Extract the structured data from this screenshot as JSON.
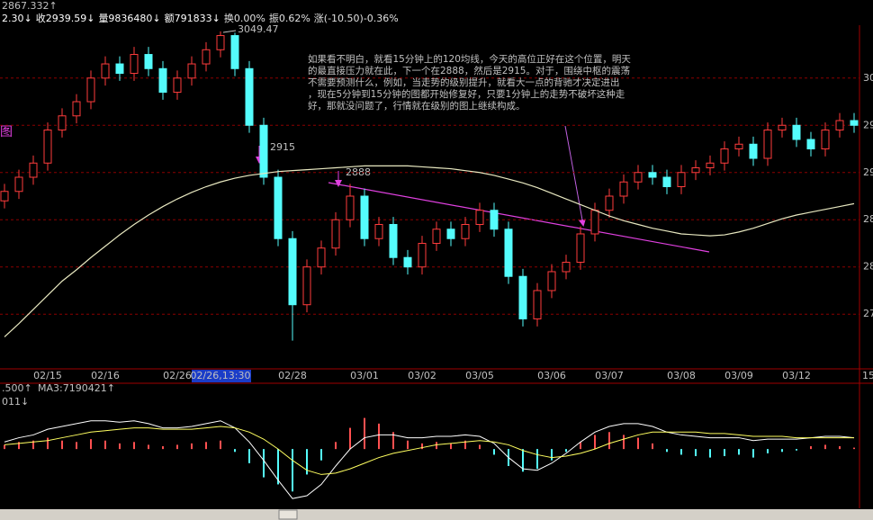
{
  "chart_data": [
    {
      "type": "candlestick",
      "header": {
        "last": "2867.332↑",
        "items": [
          "2.30↓",
          "收2939.59↓",
          "量9836480↓",
          "额791833↓",
          "换0.00%",
          "振0.62%",
          "涨(-10.50)-0.36%"
        ]
      },
      "side_label": "图",
      "corner_label": "15",
      "annotations": {
        "high_label": "3049.47",
        "mark1": "2915",
        "mark2": "2888",
        "note": [
          "如果看不明白，就看15分钟上的120均线，今天的高位正好在这个位置，明天",
          "的最直接压力就在此，下一个在2888，然后是2915。对于，围绕中枢的震荡",
          "不需要预测什么，例如，当走势的级别提升，就看大一点的背驰才决定进出",
          "，现在5分钟到15分钟的图都开始修复好，只要1分钟上的走势不破坏这种走",
          "好，那就没问题了，行情就在级别的图上继续构成。"
        ]
      },
      "categories": [
        null,
        null,
        null,
        "02/15",
        null,
        null,
        null,
        "02/16",
        null,
        null,
        null,
        null,
        "02/26",
        null,
        null,
        "02/26,13:30",
        null,
        null,
        null,
        null,
        "02/28",
        null,
        null,
        null,
        null,
        "03/01",
        null,
        null,
        null,
        "03/02",
        null,
        null,
        null,
        "03/05",
        null,
        null,
        null,
        null,
        "03/06",
        null,
        null,
        null,
        "03/07",
        null,
        null,
        null,
        null,
        "03/08",
        null,
        null,
        null,
        "03/09",
        null,
        null,
        null,
        "03/12",
        null,
        null,
        null,
        null
      ],
      "open": [
        2870,
        2880,
        2895,
        2910,
        2945,
        2960,
        2975,
        3000,
        3015,
        3005,
        3025,
        3010,
        2985,
        3000,
        3015,
        3030,
        3045,
        3010,
        2950,
        2895,
        2830,
        2760,
        2800,
        2820,
        2850,
        2875,
        2830,
        2845,
        2810,
        2800,
        2825,
        2840,
        2830,
        2845,
        2860,
        2840,
        2790,
        2745,
        2775,
        2795,
        2805,
        2835,
        2860,
        2875,
        2890,
        2900,
        2895,
        2885,
        2900,
        2905,
        2910,
        2925,
        2930,
        2915,
        2945,
        2950,
        2935,
        2925,
        2945,
        2955
      ],
      "high": [
        2888,
        2903,
        2918,
        2953,
        2968,
        2983,
        3008,
        3023,
        3023,
        3033,
        3033,
        3018,
        3008,
        3023,
        3038,
        3049.47,
        3048,
        3018,
        2958,
        2903,
        2838,
        2808,
        2828,
        2858,
        2888,
        2883,
        2853,
        2853,
        2818,
        2833,
        2848,
        2848,
        2853,
        2868,
        2868,
        2848,
        2798,
        2783,
        2803,
        2813,
        2843,
        2868,
        2883,
        2898,
        2908,
        2908,
        2903,
        2908,
        2913,
        2918,
        2933,
        2938,
        2938,
        2953,
        2958,
        2958,
        2943,
        2953,
        2963,
        2963
      ],
      "low": [
        2862,
        2872,
        2887,
        2902,
        2937,
        2952,
        2967,
        2992,
        2997,
        2997,
        3002,
        2977,
        2977,
        2992,
        3007,
        3022,
        3002,
        2942,
        2887,
        2822,
        2722,
        2752,
        2792,
        2812,
        2842,
        2822,
        2822,
        2802,
        2792,
        2792,
        2817,
        2822,
        2822,
        2837,
        2832,
        2782,
        2737,
        2737,
        2767,
        2787,
        2797,
        2827,
        2852,
        2867,
        2882,
        2887,
        2877,
        2877,
        2892,
        2897,
        2902,
        2917,
        2907,
        2907,
        2937,
        2927,
        2917,
        2917,
        2937,
        2942
      ],
      "close": [
        2880,
        2895,
        2910,
        2945,
        2960,
        2975,
        3000,
        3015,
        3005,
        3025,
        3010,
        2985,
        3000,
        3015,
        3030,
        3045,
        3010,
        2950,
        2895,
        2830,
        2760,
        2800,
        2820,
        2850,
        2875,
        2830,
        2845,
        2810,
        2800,
        2825,
        2840,
        2830,
        2845,
        2860,
        2840,
        2790,
        2745,
        2775,
        2795,
        2805,
        2835,
        2860,
        2875,
        2890,
        2900,
        2895,
        2885,
        2900,
        2905,
        2910,
        2925,
        2930,
        2915,
        2945,
        2950,
        2935,
        2925,
        2945,
        2955,
        2950
      ],
      "ma": [
        2726,
        2740,
        2755,
        2770,
        2785,
        2797,
        2810,
        2822,
        2834,
        2845,
        2855,
        2864,
        2872,
        2879,
        2885,
        2890,
        2894,
        2897,
        2899,
        2901,
        2902,
        2903,
        2904,
        2905,
        2906,
        2907,
        2907,
        2907,
        2907,
        2906,
        2905,
        2904,
        2902,
        2900,
        2897,
        2893,
        2889,
        2884,
        2878,
        2872,
        2866,
        2860,
        2854,
        2849,
        2845,
        2841,
        2838,
        2835,
        2834,
        2833,
        2834,
        2837,
        2841,
        2846,
        2851,
        2855,
        2858,
        2861,
        2864,
        2867
      ],
      "up_color": "#ff3c3c",
      "down_color": "#54fcfc",
      "ma_color": "#e8e8c0",
      "ylim": [
        2694,
        3056
      ],
      "yticks": [
        3000,
        2950,
        2900,
        2850,
        2800,
        2750
      ],
      "grid": true
    },
    {
      "type": "macd",
      "header": [
        ".500↑",
        "MA3:7190421↑",
        "011↓"
      ],
      "hist": [
        3,
        5,
        6,
        8,
        6,
        5,
        7,
        6,
        4,
        5,
        3,
        2,
        3,
        4,
        5,
        6,
        -2,
        -10,
        -20,
        -25,
        -30,
        -18,
        -8,
        5,
        15,
        22,
        18,
        12,
        6,
        4,
        5,
        4,
        6,
        3,
        -4,
        -12,
        -16,
        -14,
        -8,
        -2,
        5,
        10,
        12,
        10,
        8,
        4,
        -2,
        -4,
        -5,
        -6,
        -5,
        -4,
        -6,
        -3,
        -2,
        -1,
        2,
        3,
        2,
        1
      ],
      "dif": [
        5,
        8,
        10,
        14,
        16,
        18,
        20,
        20,
        19,
        20,
        18,
        15,
        15,
        16,
        18,
        20,
        15,
        5,
        -8,
        -22,
        -35,
        -33,
        -25,
        -12,
        0,
        8,
        10,
        10,
        8,
        8,
        9,
        9,
        10,
        9,
        4,
        -6,
        -14,
        -15,
        -10,
        -3,
        5,
        12,
        16,
        18,
        18,
        16,
        12,
        10,
        9,
        8,
        8,
        8,
        6,
        7,
        7,
        7,
        8,
        9,
        9,
        8
      ],
      "dea": [
        3,
        4,
        5,
        6,
        8,
        10,
        12,
        13,
        14,
        15,
        15,
        14,
        14,
        14,
        15,
        16,
        15,
        12,
        7,
        0,
        -8,
        -15,
        -18,
        -17,
        -14,
        -10,
        -6,
        -3,
        -1,
        1,
        3,
        4,
        5,
        6,
        5,
        3,
        -1,
        -4,
        -6,
        -5,
        -3,
        0,
        4,
        7,
        10,
        12,
        12,
        12,
        12,
        11,
        11,
        10,
        9,
        9,
        9,
        8,
        8,
        8,
        8,
        8
      ],
      "pos_color": "#ff5050",
      "neg_color": "#54fcfc",
      "dif_color": "#ffffff",
      "dea_color": "#ffff60",
      "ylim": [
        -40,
        30
      ]
    }
  ]
}
